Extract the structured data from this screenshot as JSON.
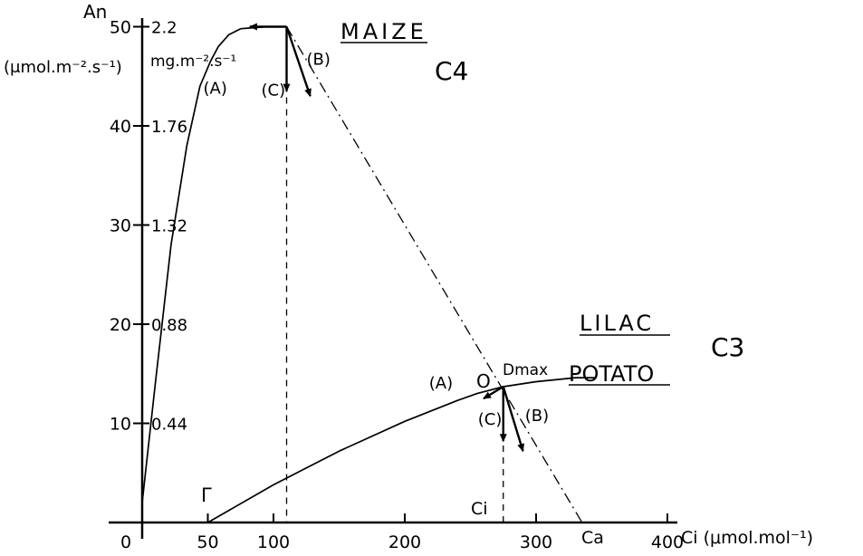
{
  "chart_data": {
    "type": "line",
    "title": "",
    "xlabel": "Ci (μmol.mol⁻¹)",
    "ylabel": "An",
    "ylabel_units_left": "(μmol.m⁻².s⁻¹)",
    "ylabel_units_right": "mg.m⁻².s⁻¹",
    "xlim": [
      0,
      400
    ],
    "ylim": [
      0,
      50
    ],
    "x_ticks": [
      0,
      50,
      100,
      200,
      300,
      400
    ],
    "y_ticks": [
      10,
      20,
      30,
      40,
      50
    ],
    "y_ticks_right": [
      {
        "y": 10,
        "label": "0.44"
      },
      {
        "y": 20,
        "label": "0.88"
      },
      {
        "y": 30,
        "label": "1.32"
      },
      {
        "y": 40,
        "label": "1.76"
      },
      {
        "y": 50,
        "label": "2.2"
      }
    ],
    "series": [
      {
        "name": "C4",
        "x": [
          0,
          10,
          22,
          34,
          44,
          52,
          58,
          66,
          75,
          85,
          95,
          110
        ],
        "y": [
          2,
          14,
          28,
          38,
          44,
          46.5,
          48,
          49.2,
          49.8,
          49.9,
          50,
          50
        ],
        "color": "#000000"
      },
      {
        "name": "C3",
        "x": [
          50,
          100,
          150,
          200,
          240,
          255,
          275,
          300,
          330,
          345
        ],
        "y": [
          0,
          3.8,
          7.2,
          10.2,
          12.3,
          13,
          13.7,
          14.2,
          14.6,
          14.6
        ],
        "color": "#000000"
      }
    ],
    "supply_line": {
      "x": [
        110,
        335
      ],
      "y": [
        50,
        0
      ]
    },
    "ci_markers": [
      {
        "x": 110,
        "y_top": 50
      },
      {
        "x": 275,
        "y_top": 13.7,
        "label": "Ci"
      }
    ],
    "ca_label": "Ca",
    "gamma_label": "Γ",
    "gamma_x": 50,
    "legend": {
      "maize": "MAIZE",
      "c4": "C4",
      "lilac": "LILAC",
      "potato": "POTATO",
      "c3": "C3"
    },
    "arrows_maize": [
      {
        "label": "(A)",
        "dx": -28,
        "dy": 0
      },
      {
        "label": "(B)",
        "dx": 18,
        "dy": -7
      },
      {
        "label": "(C)",
        "dx": 0,
        "dy": -6.5
      }
    ],
    "arrows_c3": [
      {
        "label": "(A)",
        "dx": -15,
        "dy": -1.2
      },
      {
        "label": "(B)",
        "dx": 15,
        "dy": -6.5
      },
      {
        "label": "(C)",
        "dx": 0,
        "dy": -5.5
      }
    ],
    "point_o": "O",
    "dmax": "Dmax"
  }
}
